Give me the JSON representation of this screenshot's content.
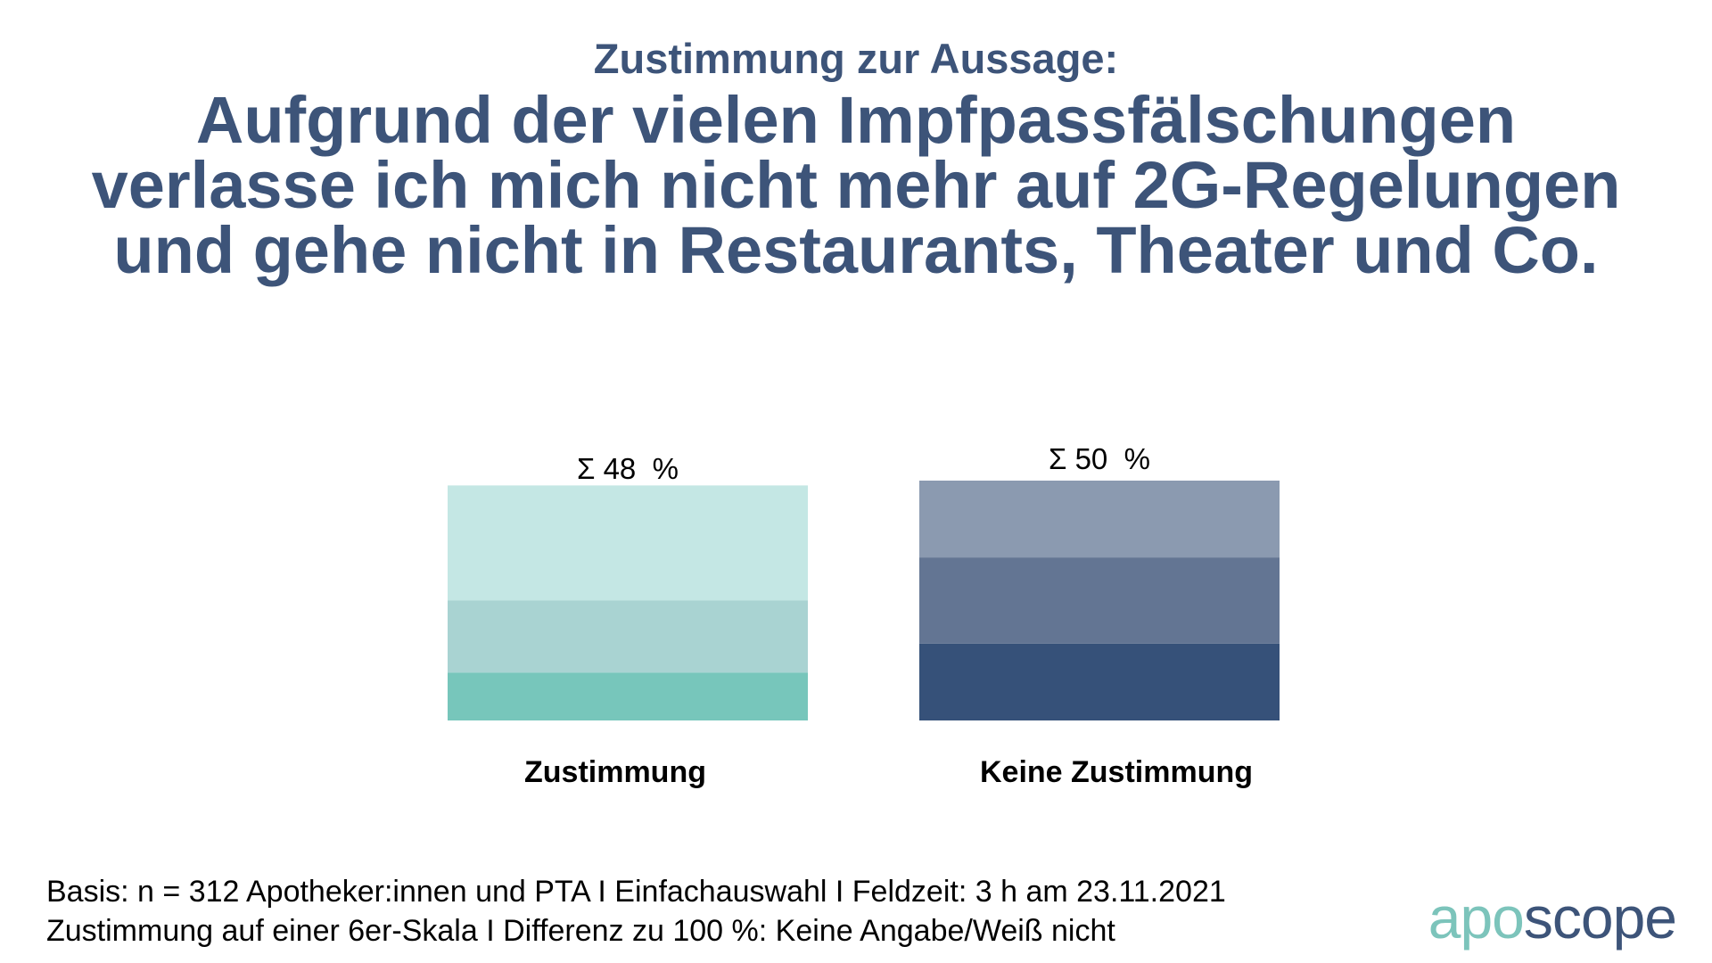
{
  "header": {
    "subtitle": "Zustimmung zur Aussage:",
    "title_lines": [
      "Aufgrund der vielen Impfpassfälschungen",
      "verlasse ich mich nicht mehr auf 2G-Regelungen",
      "und gehe nicht in Restaurants, Theater und Co."
    ]
  },
  "chart_data": {
    "type": "bar",
    "stacked": true,
    "categories": [
      "Zustimmung",
      "Keine Zustimmung"
    ],
    "totals_labels": [
      "Σ 48  %",
      "Σ 50  %"
    ],
    "totals": [
      48,
      50
    ],
    "stacks": [
      {
        "category": "Zustimmung",
        "segments_bottom_to_top": [
          {
            "value": 10,
            "color": "#77c6bb"
          },
          {
            "value": 15,
            "color": "#a9d3d2"
          },
          {
            "value": 24,
            "color": "#c4e7e4"
          }
        ]
      },
      {
        "category": "Keine Zustimmung",
        "segments_bottom_to_top": [
          {
            "value": 16,
            "color": "#365179"
          },
          {
            "value": 18,
            "color": "#637593"
          },
          {
            "value": 16,
            "color": "#8b9ab0"
          }
        ]
      }
    ],
    "ylim": [
      0,
      50
    ],
    "grid": false,
    "legend": "none"
  },
  "footnote": {
    "line1": "Basis: n = 312 Apotheker:innen und PTA I Einfachauswahl I Feldzeit: 3 h am 23.11.2021",
    "line2": "Zustimmung auf einer 6er-Skala I Differenz zu 100 %: Keine Angabe/Weiß nicht"
  },
  "brand": {
    "part_a": "apo",
    "part_b": "scope",
    "colors": {
      "part_a": "#7cc4bb",
      "part_b": "#3d5479"
    }
  }
}
